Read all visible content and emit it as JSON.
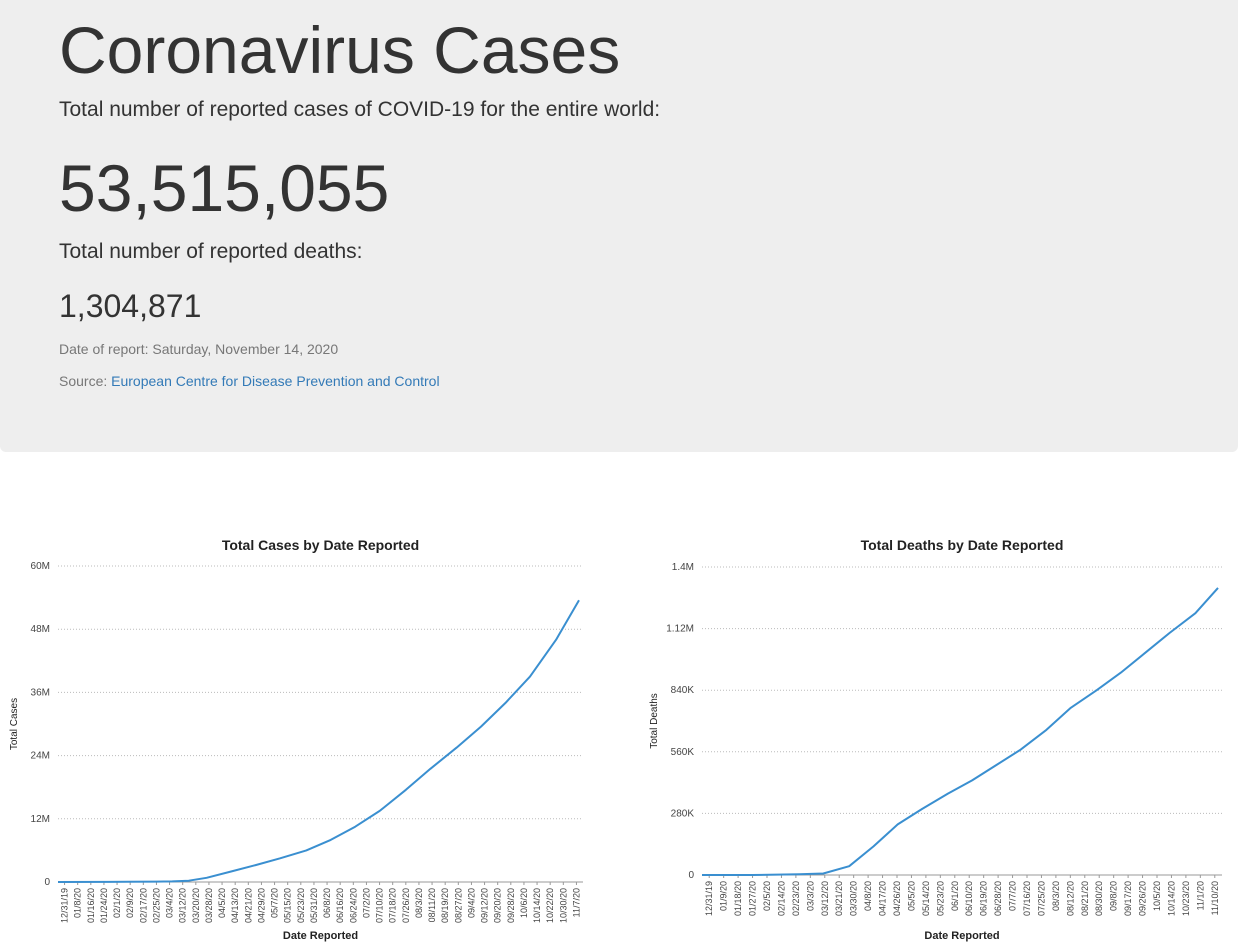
{
  "header": {
    "title": "Coronavirus Cases",
    "cases_label": "Total number of reported cases of COVID-19 for the entire world:",
    "cases_value": "53,515,055",
    "deaths_label": "Total number of reported deaths:",
    "deaths_value": "1,304,871",
    "report_date": "Date of report: Saturday, November 14, 2020",
    "source_label": "Source:",
    "source_link": "European Centre for Disease Prevention and Control"
  },
  "colors": {
    "line": "#3a8fd0",
    "link": "#337ab7",
    "jumbotron": "#eeeeee"
  },
  "chart_data": [
    {
      "type": "line",
      "title": "Total Cases by Date Reported",
      "xlabel": "Date Reported",
      "ylabel": "Total Cases",
      "ylim": [
        0,
        60000000
      ],
      "yticks": [
        0,
        12000000,
        24000000,
        36000000,
        48000000,
        60000000
      ],
      "ytick_labels": [
        "0",
        "12M",
        "24M",
        "36M",
        "48M",
        "60M"
      ],
      "xtick_labels": [
        "12/31/19",
        "01/8/20",
        "01/16/20",
        "01/24/20",
        "02/1/20",
        "02/9/20",
        "02/17/20",
        "02/25/20",
        "03/4/20",
        "03/12/20",
        "03/20/20",
        "03/28/20",
        "04/5/20",
        "04/13/20",
        "04/21/20",
        "04/29/20",
        "05/7/20",
        "05/15/20",
        "05/23/20",
        "05/31/20",
        "06/8/20",
        "06/16/20",
        "06/24/20",
        "07/2/20",
        "07/10/20",
        "07/18/20",
        "07/26/20",
        "08/3/20",
        "08/11/20",
        "08/19/20",
        "08/27/20",
        "09/4/20",
        "09/12/20",
        "09/20/20",
        "09/28/20",
        "10/6/20",
        "10/14/20",
        "10/22/20",
        "10/30/20",
        "11/7/20"
      ],
      "grid": true,
      "series": [
        {
          "x": [
            "2019-12-31",
            "2020-01-31",
            "2020-02-29",
            "2020-03-10",
            "2020-03-20",
            "2020-03-31",
            "2020-04-15",
            "2020-04-30",
            "2020-05-15",
            "2020-05-31",
            "2020-06-15",
            "2020-06-30",
            "2020-07-15",
            "2020-07-31",
            "2020-08-15",
            "2020-08-31",
            "2020-09-15",
            "2020-09-30",
            "2020-10-15",
            "2020-10-31",
            "2020-11-14"
          ],
          "values": [
            0,
            10000,
            85000,
            120000,
            250000,
            800000,
            2000000,
            3200000,
            4500000,
            6000000,
            8000000,
            10500000,
            13500000,
            17500000,
            21500000,
            25500000,
            29500000,
            34000000,
            39000000,
            46000000,
            53500000
          ]
        }
      ]
    },
    {
      "type": "line",
      "title": "Total Deaths by Date Reported",
      "xlabel": "Date Reported",
      "ylabel": "Total Deaths",
      "ylim": [
        0,
        1400000
      ],
      "yticks": [
        0,
        280000,
        560000,
        840000,
        1120000,
        1400000
      ],
      "ytick_labels": [
        "0",
        "280K",
        "560K",
        "840K",
        "1.12M",
        "1.4M"
      ],
      "xtick_labels": [
        "12/31/19",
        "01/9/20",
        "01/18/20",
        "01/27/20",
        "02/5/20",
        "02/14/20",
        "02/23/20",
        "03/3/20",
        "03/12/20",
        "03/21/20",
        "03/30/20",
        "04/8/20",
        "04/17/20",
        "04/26/20",
        "05/5/20",
        "05/14/20",
        "05/23/20",
        "06/1/20",
        "06/10/20",
        "06/19/20",
        "06/28/20",
        "07/7/20",
        "07/16/20",
        "07/25/20",
        "08/3/20",
        "08/12/20",
        "08/21/20",
        "08/30/20",
        "09/8/20",
        "09/17/20",
        "09/26/20",
        "10/5/20",
        "10/14/20",
        "10/23/20",
        "11/1/20",
        "11/10/20"
      ],
      "grid": true,
      "series": [
        {
          "x": [
            "2019-12-31",
            "2020-01-31",
            "2020-02-29",
            "2020-03-15",
            "2020-03-31",
            "2020-04-15",
            "2020-04-30",
            "2020-05-15",
            "2020-05-31",
            "2020-06-15",
            "2020-06-30",
            "2020-07-15",
            "2020-07-31",
            "2020-08-15",
            "2020-08-31",
            "2020-09-15",
            "2020-09-30",
            "2020-10-15",
            "2020-10-31",
            "2020-11-14"
          ],
          "values": [
            0,
            200,
            3000,
            7000,
            40000,
            130000,
            230000,
            300000,
            370000,
            430000,
            500000,
            570000,
            660000,
            760000,
            840000,
            920000,
            1010000,
            1100000,
            1190000,
            1304871
          ]
        }
      ]
    }
  ]
}
